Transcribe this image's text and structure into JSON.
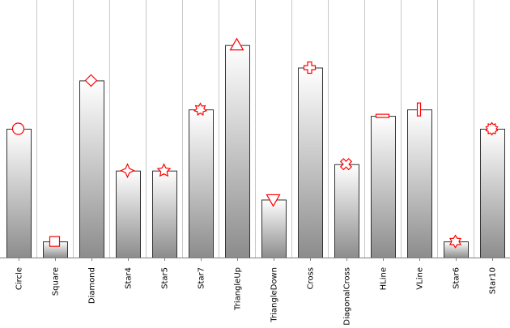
{
  "chart_data": {
    "type": "bar",
    "categories": [
      "Circle",
      "Square",
      "Diamond",
      "Star4",
      "Star5",
      "Star7",
      "TriangleUp",
      "TriangleDown",
      "Cross",
      "DiagonalCross",
      "HLine",
      "VLine",
      "Star6",
      "Star10"
    ],
    "values": [
      8.0,
      1.0,
      11.0,
      5.4,
      5.4,
      9.2,
      13.2,
      3.6,
      11.8,
      5.8,
      8.8,
      9.2,
      1.0,
      8.0
    ],
    "markers": [
      "circle",
      "square",
      "diamond",
      "star4",
      "star5",
      "star7",
      "triangle-up",
      "triangle-down",
      "cross",
      "diagonal-cross",
      "hline",
      "vline",
      "star6",
      "star10"
    ],
    "ylim": [
      0,
      16
    ],
    "grid": "vertical",
    "legend": "none",
    "colors": {
      "bar_top": "#ffffff",
      "bar_bottom": "#8c8c8c",
      "bar_stroke": "#333333",
      "marker": "#ff0000",
      "grid": "#c8c8c8",
      "axis": "#808080"
    }
  }
}
